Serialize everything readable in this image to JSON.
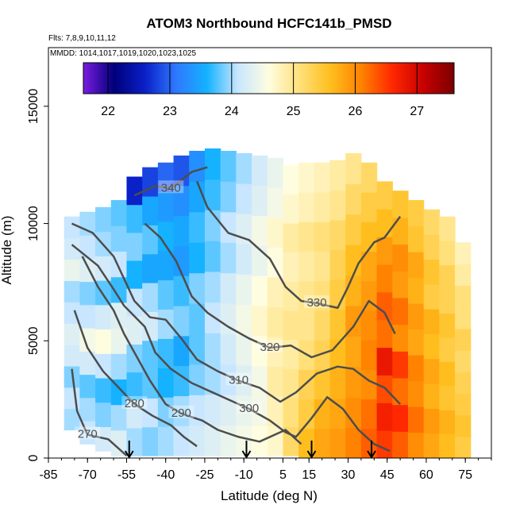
{
  "chart_data": {
    "type": "heatmap",
    "title": "ATOM3 Northbound HCFC141b_PMSD",
    "subtitle_flights": "Flts: 7,8,9,10,11,12",
    "subtitle_dates": "MMDD: 1014,1017,1019,1020,1023,1025",
    "xlabel": "Latitude (deg N)",
    "ylabel": "Altitude (m)",
    "xlim": [
      -85,
      85
    ],
    "ylim": [
      0,
      17500
    ],
    "x_ticks": [
      -85,
      -70,
      -55,
      -40,
      -25,
      -10,
      5,
      15,
      30,
      45,
      60,
      75
    ],
    "y_ticks": [
      0,
      5000,
      10000,
      15000
    ],
    "colorbar": {
      "ticks": [
        22,
        23,
        24,
        25,
        26,
        27
      ],
      "range": [
        21.6,
        27.6
      ],
      "colors": [
        "#7a1ce0",
        "#00007a",
        "#0a20c8",
        "#2f78ff",
        "#14b2ff",
        "#c8e6ff",
        "#fffde0",
        "#ffe07a",
        "#ffbe1e",
        "#ff8200",
        "#ff2800",
        "#c80000",
        "#7a0000"
      ]
    },
    "grid": false,
    "legend": "top-colorbar",
    "columns": [
      {
        "lat": -76,
        "zmin": 1200,
        "zmax": 10300,
        "values": [
          24.0,
          24.1,
          23.9,
          24.2,
          24.3,
          24.1,
          24.0,
          24.4,
          24.2,
          24.1
        ]
      },
      {
        "lat": -70,
        "zmin": 600,
        "zmax": 10500,
        "values": [
          24.1,
          24.0,
          23.8,
          24.2,
          24.5,
          24.1,
          23.9,
          24.3,
          24.1,
          24.0
        ]
      },
      {
        "lat": -64,
        "zmin": 300,
        "zmax": 10700,
        "values": [
          24.2,
          23.9,
          23.7,
          24.1,
          24.6,
          24.2,
          23.8,
          24.2,
          24.0,
          23.9
        ]
      },
      {
        "lat": -58,
        "zmin": 100,
        "zmax": 11000,
        "values": [
          24.3,
          24.0,
          23.6,
          24.0,
          24.4,
          24.3,
          23.7,
          24.1,
          23.9,
          23.8
        ]
      },
      {
        "lat": -52,
        "zmin": 100,
        "zmax": 12000,
        "values": [
          24.0,
          24.2,
          23.7,
          23.9,
          24.3,
          24.1,
          23.6,
          23.9,
          23.7,
          22.6
        ]
      },
      {
        "lat": -46,
        "zmin": 100,
        "zmax": 12400,
        "values": [
          23.9,
          24.1,
          23.8,
          23.8,
          24.2,
          24.0,
          23.5,
          23.8,
          23.5,
          22.8
        ]
      },
      {
        "lat": -40,
        "zmin": 100,
        "zmax": 12600,
        "values": [
          24.0,
          23.9,
          23.6,
          23.7,
          24.0,
          23.8,
          23.5,
          23.6,
          23.4,
          23.0
        ]
      },
      {
        "lat": -34,
        "zmin": 100,
        "zmax": 12900,
        "values": [
          24.1,
          24.0,
          23.7,
          23.5,
          23.9,
          23.7,
          23.4,
          23.5,
          23.3,
          22.9
        ]
      },
      {
        "lat": -28,
        "zmin": 100,
        "zmax": 13100,
        "values": [
          24.2,
          24.1,
          23.9,
          23.8,
          23.8,
          23.9,
          23.6,
          23.7,
          23.5,
          23.3
        ]
      },
      {
        "lat": -22,
        "zmin": 100,
        "zmax": 13200,
        "values": [
          24.3,
          24.2,
          24.0,
          24.0,
          24.1,
          24.0,
          23.8,
          23.9,
          23.7,
          23.6
        ]
      },
      {
        "lat": -16,
        "zmin": 100,
        "zmax": 13100,
        "values": [
          24.4,
          24.3,
          24.1,
          24.2,
          24.3,
          24.2,
          24.0,
          24.1,
          23.9,
          23.8
        ]
      },
      {
        "lat": -10,
        "zmin": 100,
        "zmax": 13000,
        "values": [
          24.5,
          24.4,
          24.3,
          24.4,
          24.5,
          24.4,
          24.2,
          24.3,
          24.1,
          24.0
        ]
      },
      {
        "lat": -4,
        "zmin": 100,
        "zmax": 12900,
        "values": [
          24.6,
          24.5,
          24.5,
          24.6,
          24.7,
          24.6,
          24.4,
          24.5,
          24.3,
          24.2
        ]
      },
      {
        "lat": 2,
        "zmin": 100,
        "zmax": 12800,
        "values": [
          24.7,
          24.8,
          24.9,
          24.8,
          24.9,
          24.8,
          24.6,
          24.7,
          24.5,
          24.4
        ]
      },
      {
        "lat": 8,
        "zmin": 100,
        "zmax": 12500,
        "values": [
          25.2,
          25.1,
          25.0,
          24.9,
          25.0,
          24.9,
          24.8,
          24.9,
          24.7,
          24.6
        ]
      },
      {
        "lat": 14,
        "zmin": 0,
        "zmax": 12600,
        "values": [
          25.6,
          25.4,
          25.3,
          25.1,
          25.0,
          25.0,
          24.9,
          25.0,
          24.8,
          24.7
        ]
      },
      {
        "lat": 20,
        "zmin": 0,
        "zmax": 12600,
        "values": [
          25.8,
          25.7,
          25.5,
          25.3,
          25.2,
          25.1,
          25.0,
          25.1,
          24.9,
          24.8
        ]
      },
      {
        "lat": 26,
        "zmin": 0,
        "zmax": 12700,
        "values": [
          25.9,
          25.8,
          25.7,
          25.6,
          25.5,
          25.4,
          25.3,
          25.2,
          25.0,
          24.9
        ]
      },
      {
        "lat": 32,
        "zmin": 0,
        "zmax": 13000,
        "values": [
          26.1,
          26.0,
          25.9,
          25.8,
          25.9,
          25.7,
          25.6,
          25.4,
          25.2,
          25.0
        ]
      },
      {
        "lat": 38,
        "zmin": 0,
        "zmax": 12600,
        "values": [
          26.3,
          26.2,
          26.0,
          26.1,
          26.0,
          25.9,
          25.8,
          25.6,
          25.4,
          25.2
        ]
      },
      {
        "lat": 44,
        "zmin": 0,
        "zmax": 11800,
        "values": [
          26.5,
          26.7,
          26.4,
          26.8,
          26.2,
          26.3,
          26.1,
          25.9,
          25.6,
          25.4
        ]
      },
      {
        "lat": 50,
        "zmin": 0,
        "zmax": 11400,
        "values": [
          26.3,
          26.6,
          26.2,
          26.5,
          26.0,
          26.2,
          25.9,
          26.0,
          25.7,
          25.5
        ]
      },
      {
        "lat": 56,
        "zmin": 0,
        "zmax": 11000,
        "values": [
          26.0,
          26.2,
          26.0,
          26.1,
          25.8,
          25.9,
          25.7,
          25.8,
          25.5,
          25.4
        ]
      },
      {
        "lat": 62,
        "zmin": 0,
        "zmax": 10600,
        "values": [
          25.8,
          25.9,
          25.7,
          25.8,
          25.6,
          25.7,
          25.4,
          25.5,
          25.3,
          25.2
        ]
      },
      {
        "lat": 68,
        "zmin": 0,
        "zmax": 10300,
        "values": [
          25.6,
          25.7,
          25.5,
          25.6,
          25.4,
          25.5,
          25.3,
          25.3,
          25.1,
          25.0
        ]
      },
      {
        "lat": 74,
        "zmin": 0,
        "zmax": 9200,
        "values": [
          25.4,
          25.5,
          25.4,
          25.3,
          25.2,
          25.3,
          25.1,
          25.1,
          24.9,
          24.8
        ]
      }
    ],
    "contours": [
      {
        "label": "270",
        "points": [
          [
            -76,
            3800
          ],
          [
            -74,
            2000
          ],
          [
            -70,
            1000
          ],
          [
            -62,
            800
          ],
          [
            -55,
            100
          ]
        ]
      },
      {
        "label": "280",
        "points": [
          [
            -75,
            6300
          ],
          [
            -70,
            4700
          ],
          [
            -64,
            3700
          ],
          [
            -58,
            3000
          ],
          [
            -52,
            2300
          ],
          [
            -45,
            1800
          ],
          [
            -38,
            1400
          ],
          [
            -33,
            900
          ],
          [
            -28,
            500
          ]
        ]
      },
      {
        "label": "290",
        "points": [
          [
            -72,
            8600
          ],
          [
            -66,
            7300
          ],
          [
            -60,
            6300
          ],
          [
            -56,
            5300
          ],
          [
            -50,
            4100
          ],
          [
            -46,
            3300
          ],
          [
            -40,
            2300
          ],
          [
            -34,
            1900
          ],
          [
            -26,
            1600
          ],
          [
            -20,
            1200
          ],
          [
            -12,
            900
          ],
          [
            -4,
            700
          ],
          [
            6,
            1200
          ],
          [
            12,
            600
          ]
        ]
      },
      {
        "label": "300",
        "points": [
          [
            -76,
            9100
          ],
          [
            -66,
            8200
          ],
          [
            -60,
            7200
          ],
          [
            -56,
            6500
          ],
          [
            -48,
            5600
          ],
          [
            -44,
            4500
          ],
          [
            -38,
            3800
          ],
          [
            -30,
            3200
          ],
          [
            -22,
            2800
          ],
          [
            -14,
            2400
          ],
          [
            -8,
            2100
          ],
          [
            0,
            1600
          ],
          [
            6,
            1100
          ],
          [
            10,
            900
          ],
          [
            16,
            1700
          ],
          [
            22,
            2600
          ],
          [
            28,
            2100
          ],
          [
            34,
            1200
          ],
          [
            40,
            600
          ],
          [
            46,
            300
          ]
        ]
      },
      {
        "label": "310",
        "points": [
          [
            -76,
            10000
          ],
          [
            -68,
            9600
          ],
          [
            -60,
            8600
          ],
          [
            -52,
            6700
          ],
          [
            -46,
            6000
          ],
          [
            -40,
            5900
          ],
          [
            -34,
            5100
          ],
          [
            -28,
            4200
          ],
          [
            -20,
            3700
          ],
          [
            -12,
            3300
          ],
          [
            -4,
            3000
          ],
          [
            4,
            2400
          ],
          [
            10,
            2800
          ],
          [
            18,
            3600
          ],
          [
            26,
            3900
          ],
          [
            32,
            3800
          ],
          [
            38,
            3300
          ],
          [
            44,
            3000
          ],
          [
            50,
            2300
          ]
        ]
      },
      {
        "label": "320",
        "points": [
          [
            -48,
            10000
          ],
          [
            -42,
            9400
          ],
          [
            -36,
            8400
          ],
          [
            -30,
            6900
          ],
          [
            -24,
            6200
          ],
          [
            -16,
            5600
          ],
          [
            -8,
            5100
          ],
          [
            0,
            4700
          ],
          [
            8,
            4800
          ],
          [
            16,
            4300
          ],
          [
            24,
            4600
          ],
          [
            32,
            5600
          ],
          [
            38,
            6700
          ],
          [
            44,
            6200
          ],
          [
            48,
            5300
          ]
        ]
      },
      {
        "label": "330",
        "points": [
          [
            -28,
            11800
          ],
          [
            -24,
            10700
          ],
          [
            -16,
            9600
          ],
          [
            -8,
            9300
          ],
          [
            0,
            8500
          ],
          [
            6,
            7300
          ],
          [
            12,
            6700
          ],
          [
            18,
            6600
          ],
          [
            26,
            6400
          ],
          [
            30,
            7300
          ],
          [
            34,
            8300
          ],
          [
            40,
            9200
          ],
          [
            44,
            9400
          ],
          [
            50,
            10300
          ]
        ]
      },
      {
        "label": "340",
        "points": [
          [
            -52,
            11200
          ],
          [
            -44,
            11600
          ],
          [
            -38,
            11500
          ],
          [
            -30,
            12200
          ],
          [
            -24,
            12400
          ]
        ]
      }
    ],
    "arrows_lat": [
      -54,
      -9,
      16,
      39
    ]
  }
}
